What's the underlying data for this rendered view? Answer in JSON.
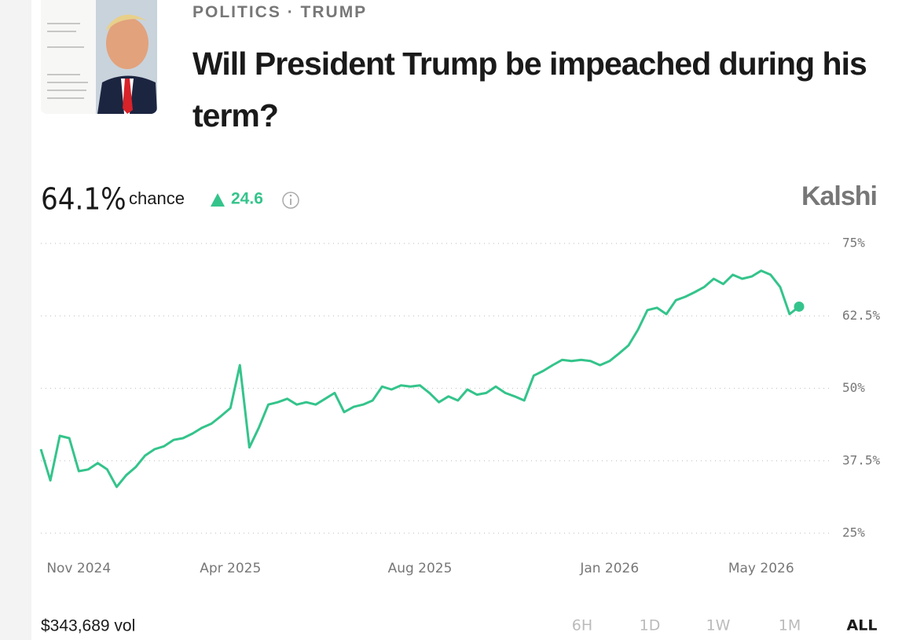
{
  "header": {
    "category": "POLITICS",
    "separator": "·",
    "tag": "TRUMP",
    "title": "Will President Trump be impeached during his term?"
  },
  "summary": {
    "probability": "64.1%",
    "probability_label": "chance",
    "change": "24.6",
    "brand": "Kalshi",
    "volume": "$343,689 vol",
    "ranges": [
      "6H",
      "1D",
      "1W",
      "1M",
      "ALL"
    ],
    "active_range": "ALL"
  },
  "chart_data": {
    "type": "line",
    "color": "#34c48b",
    "grid": true,
    "end_marker": true,
    "categories": [
      null,
      null,
      null,
      null,
      "Nov 2024",
      null,
      null,
      null,
      null,
      null,
      null,
      null,
      null,
      null,
      null,
      null,
      null,
      null,
      null,
      null,
      "Apr 2025",
      null,
      null,
      null,
      null,
      null,
      null,
      null,
      null,
      null,
      null,
      null,
      null,
      null,
      null,
      null,
      null,
      null,
      null,
      null,
      "Aug 2025",
      null,
      null,
      null,
      null,
      null,
      null,
      null,
      null,
      null,
      null,
      null,
      null,
      null,
      null,
      null,
      null,
      null,
      null,
      null,
      "Jan 2026",
      null,
      null,
      null,
      null,
      null,
      null,
      null,
      null,
      null,
      null,
      null,
      null,
      null,
      null,
      null,
      "May 2026",
      null,
      null,
      null,
      null
    ],
    "values": [
      39.5,
      34.1,
      41.8,
      41.4,
      35.7,
      36.0,
      37.1,
      36.0,
      33.0,
      35.0,
      36.4,
      38.4,
      39.5,
      40.0,
      41.1,
      41.4,
      42.2,
      43.2,
      43.9,
      45.2,
      46.6,
      54.0,
      39.8,
      43.2,
      47.2,
      47.6,
      48.2,
      47.2,
      47.6,
      47.2,
      48.2,
      49.2,
      45.9,
      46.8,
      47.2,
      47.9,
      50.3,
      49.8,
      50.5,
      50.3,
      50.5,
      49.2,
      47.6,
      48.6,
      47.9,
      49.8,
      48.9,
      49.2,
      50.3,
      49.2,
      48.6,
      47.9,
      52.2,
      53.0,
      54.0,
      54.9,
      54.7,
      54.9,
      54.7,
      54.0,
      54.7,
      56.0,
      57.4,
      60.1,
      63.5,
      63.9,
      62.8,
      65.2,
      65.8,
      66.6,
      67.5,
      68.9,
      68.0,
      69.6,
      68.9,
      69.3,
      70.3,
      69.6,
      67.5,
      62.8,
      64.1
    ],
    "ylim": [
      25,
      75
    ],
    "yticks": [
      {
        "value": 25,
        "label": "25%"
      },
      {
        "value": 37.5,
        "label": "37.5%"
      },
      {
        "value": 50,
        "label": "50%"
      },
      {
        "value": 62.5,
        "label": "62.5%"
      },
      {
        "value": 75,
        "label": "75%"
      }
    ]
  }
}
